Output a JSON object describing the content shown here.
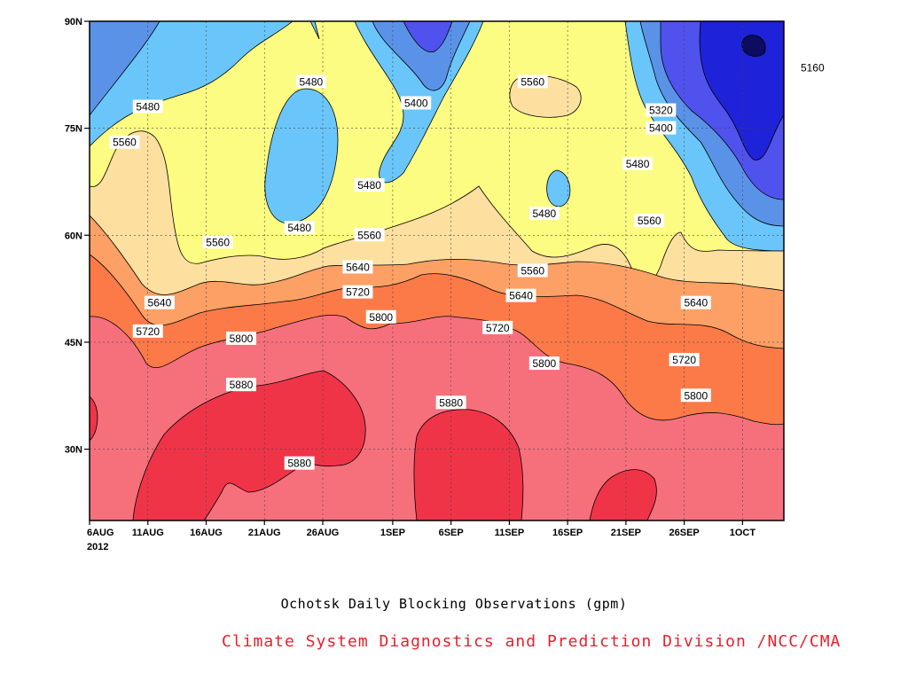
{
  "chart_data": {
    "type": "heatmap",
    "title": "Ochotsk Daily Blocking Observations (gpm)",
    "source": "Climate System Diagnostics and Prediction Division /NCC/CMA",
    "year_label": "2012",
    "x_ticks": [
      "6AUG",
      "11AUG",
      "16AUG",
      "21AUG",
      "26AUG",
      "1SEP",
      "6SEP",
      "11SEP",
      "16SEP",
      "21SEP",
      "26SEP",
      "1OCT"
    ],
    "y_ticks": [
      "30N",
      "45N",
      "60N",
      "75N",
      "90N"
    ],
    "ylim": [
      20,
      90
    ],
    "grid": true,
    "contour_levels": [
      5160,
      5240,
      5320,
      5400,
      5480,
      5560,
      5640,
      5720,
      5800,
      5880
    ],
    "fill_colors": {
      "gt_5880": "#f03448",
      "5800_5880": "#f6707c",
      "5720_5800": "#fb7a48",
      "5640_5720": "#fca065",
      "5560_5640": "#fddf9f",
      "5480_5560": "#fcfc82",
      "5400_5480": "#6ac6fa",
      "5320_5400": "#5a92e8",
      "5240_5320": "#5052ee",
      "5160_5240": "#1e22d8",
      "lt_5160": "#0c0c60"
    },
    "contour_labels": [
      {
        "text": "5160",
        "x_date": "7OCT",
        "lat": 83.5
      },
      {
        "text": "5320",
        "x_date": "24SEP",
        "lat": 77.5
      },
      {
        "text": "5400",
        "x_date": "24SEP",
        "lat": 75
      },
      {
        "text": "5480",
        "x_date": "22SEP",
        "lat": 70
      },
      {
        "text": "5560",
        "x_date": "23SEP",
        "lat": 62
      },
      {
        "text": "5400",
        "x_date": "3SEP",
        "lat": 78.5
      },
      {
        "text": "5560",
        "x_date": "13SEP",
        "lat": 81.5
      },
      {
        "text": "5480",
        "x_date": "11AUG",
        "lat": 78
      },
      {
        "text": "5560",
        "x_date": "9AUG",
        "lat": 73
      },
      {
        "text": "5480",
        "x_date": "25AUG",
        "lat": 81.5
      },
      {
        "text": "5480",
        "x_date": "30AUG",
        "lat": 67
      },
      {
        "text": "5480",
        "x_date": "14SEP",
        "lat": 63
      },
      {
        "text": "5480",
        "x_date": "24AUG",
        "lat": 61
      },
      {
        "text": "5560",
        "x_date": "17AUG",
        "lat": 59
      },
      {
        "text": "5560",
        "x_date": "30AUG",
        "lat": 60
      },
      {
        "text": "5640",
        "x_date": "29AUG",
        "lat": 55.5
      },
      {
        "text": "5560",
        "x_date": "13SEP",
        "lat": 55
      },
      {
        "text": "5640",
        "x_date": "12AUG",
        "lat": 50.5
      },
      {
        "text": "5720",
        "x_date": "29AUG",
        "lat": 52
      },
      {
        "text": "5640",
        "x_date": "12SEP",
        "lat": 51.5
      },
      {
        "text": "5640",
        "x_date": "27SEP",
        "lat": 50.5
      },
      {
        "text": "5720",
        "x_date": "11AUG",
        "lat": 46.5
      },
      {
        "text": "5800",
        "x_date": "31AUG",
        "lat": 48.5
      },
      {
        "text": "5720",
        "x_date": "10SEP",
        "lat": 47
      },
      {
        "text": "5800",
        "x_date": "19AUG",
        "lat": 45.5
      },
      {
        "text": "5800",
        "x_date": "14SEP",
        "lat": 42
      },
      {
        "text": "5720",
        "x_date": "26SEP",
        "lat": 42.5
      },
      {
        "text": "5880",
        "x_date": "19AUG",
        "lat": 39
      },
      {
        "text": "5800",
        "x_date": "27SEP",
        "lat": 37.5
      },
      {
        "text": "5880",
        "x_date": "6SEP",
        "lat": 36.5
      },
      {
        "text": "5880",
        "x_date": "24AUG",
        "lat": 28
      }
    ]
  }
}
